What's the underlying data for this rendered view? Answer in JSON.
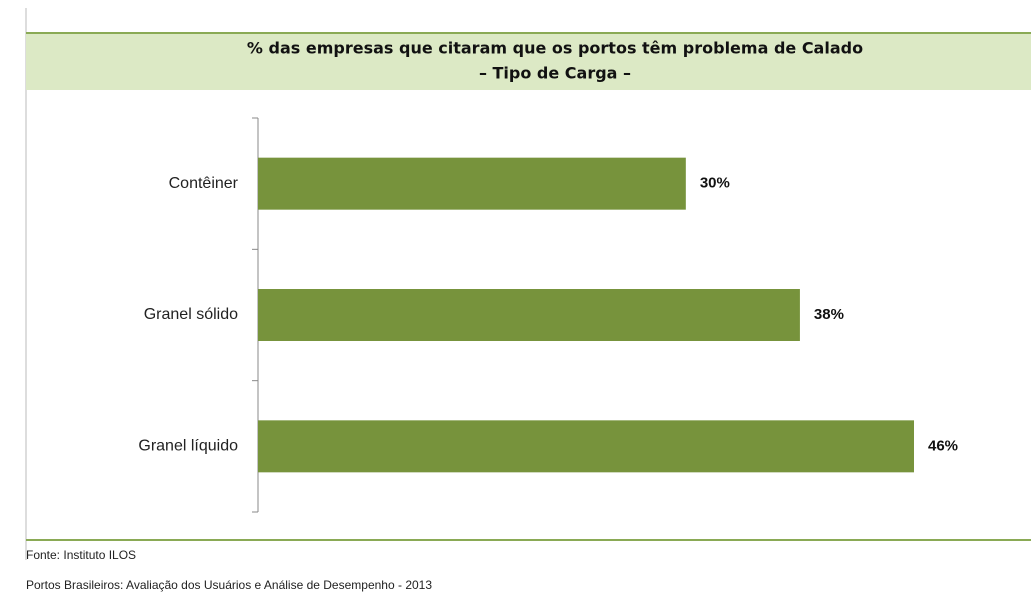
{
  "chart_data": {
    "type": "bar",
    "orientation": "horizontal",
    "title": "% das empresas que citaram que os portos têm problema de Calado",
    "subtitle": "– Tipo de Carga –",
    "categories": [
      "Contêiner",
      "Granel sólido",
      "Granel líquido"
    ],
    "values": [
      30,
      38,
      46
    ],
    "value_labels": [
      "30%",
      "38%",
      "46%"
    ],
    "color": "#77933c",
    "source": "Fonte: Instituto ILOS",
    "footer": "Portos Brasileiros: Avaliação dos Usuários e Análise de Desempenho - 2013"
  }
}
